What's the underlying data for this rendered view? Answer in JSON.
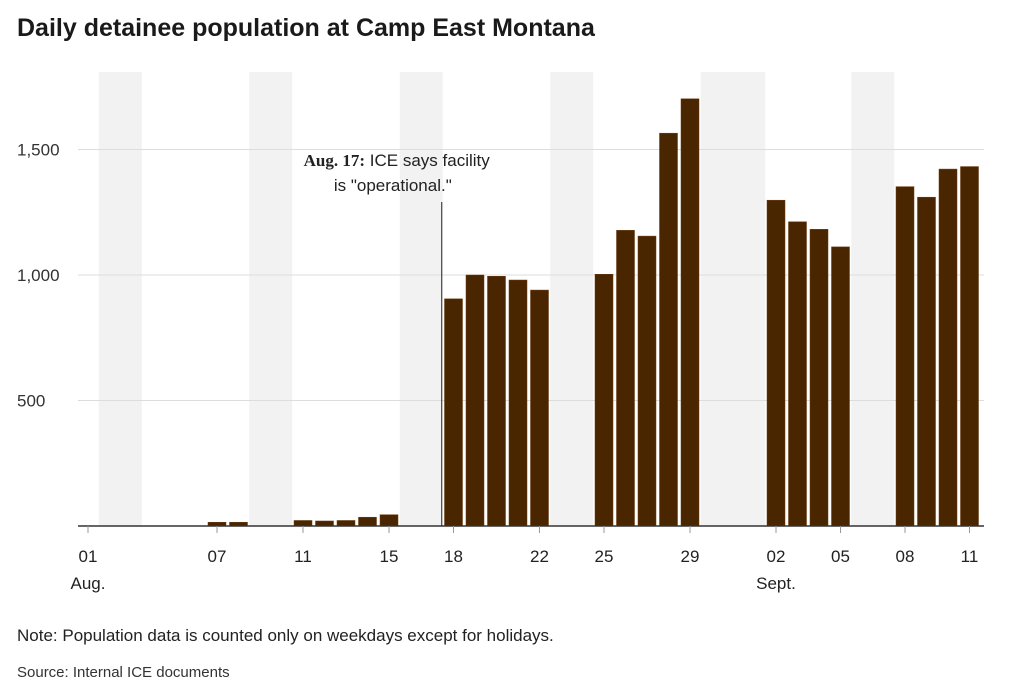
{
  "chart_data": {
    "type": "bar",
    "title": "Daily detainee population at Camp East Montana",
    "xlabel": "",
    "ylabel": "",
    "ylim": [
      0,
      1800
    ],
    "yticks": [
      500,
      1000,
      1500
    ],
    "ytick_labels": [
      "500",
      "1,000",
      "1,500"
    ],
    "grid": true,
    "x_range": [
      "2025-08-01",
      "2025-09-11"
    ],
    "xticks": [
      {
        "date": "2025-08-01",
        "label": "01",
        "sublabel": "Aug."
      },
      {
        "date": "2025-08-07",
        "label": "07"
      },
      {
        "date": "2025-08-11",
        "label": "11"
      },
      {
        "date": "2025-08-15",
        "label": "15"
      },
      {
        "date": "2025-08-18",
        "label": "18"
      },
      {
        "date": "2025-08-22",
        "label": "22"
      },
      {
        "date": "2025-08-25",
        "label": "25"
      },
      {
        "date": "2025-08-29",
        "label": "29"
      },
      {
        "date": "2025-09-02",
        "label": "02",
        "sublabel": "Sept."
      },
      {
        "date": "2025-09-05",
        "label": "05"
      },
      {
        "date": "2025-09-08",
        "label": "08"
      },
      {
        "date": "2025-09-11",
        "label": "11"
      }
    ],
    "shaded_periods": [
      [
        "2025-08-02",
        "2025-08-03"
      ],
      [
        "2025-08-09",
        "2025-08-10"
      ],
      [
        "2025-08-16",
        "2025-08-17"
      ],
      [
        "2025-08-23",
        "2025-08-24"
      ],
      [
        "2025-08-30",
        "2025-09-01"
      ],
      [
        "2025-09-06",
        "2025-09-07"
      ]
    ],
    "dates": [
      "2025-08-07",
      "2025-08-08",
      "2025-08-11",
      "2025-08-12",
      "2025-08-13",
      "2025-08-14",
      "2025-08-15",
      "2025-08-18",
      "2025-08-19",
      "2025-08-20",
      "2025-08-21",
      "2025-08-22",
      "2025-08-25",
      "2025-08-26",
      "2025-08-27",
      "2025-08-28",
      "2025-08-29",
      "2025-09-02",
      "2025-09-03",
      "2025-09-04",
      "2025-09-05",
      "2025-09-08",
      "2025-09-09",
      "2025-09-10",
      "2025-09-11"
    ],
    "values": [
      15,
      15,
      22,
      20,
      22,
      35,
      45,
      905,
      1000,
      995,
      980,
      940,
      1003,
      1178,
      1155,
      1565,
      1702,
      1298,
      1212,
      1182,
      1112,
      1352,
      1310,
      1422,
      1432
    ],
    "annotation": {
      "date": "2025-08-17",
      "bold": "Aug. 17:",
      "text1": " ICE says facility",
      "text2": "is \"operational.\""
    },
    "colors": {
      "bar": "#4a2600",
      "shade": "#f2f2f2",
      "grid": "#dddddd"
    }
  },
  "note": "Note: Population data is counted only on weekdays except for holidays.",
  "source": "Source: Internal ICE documents"
}
